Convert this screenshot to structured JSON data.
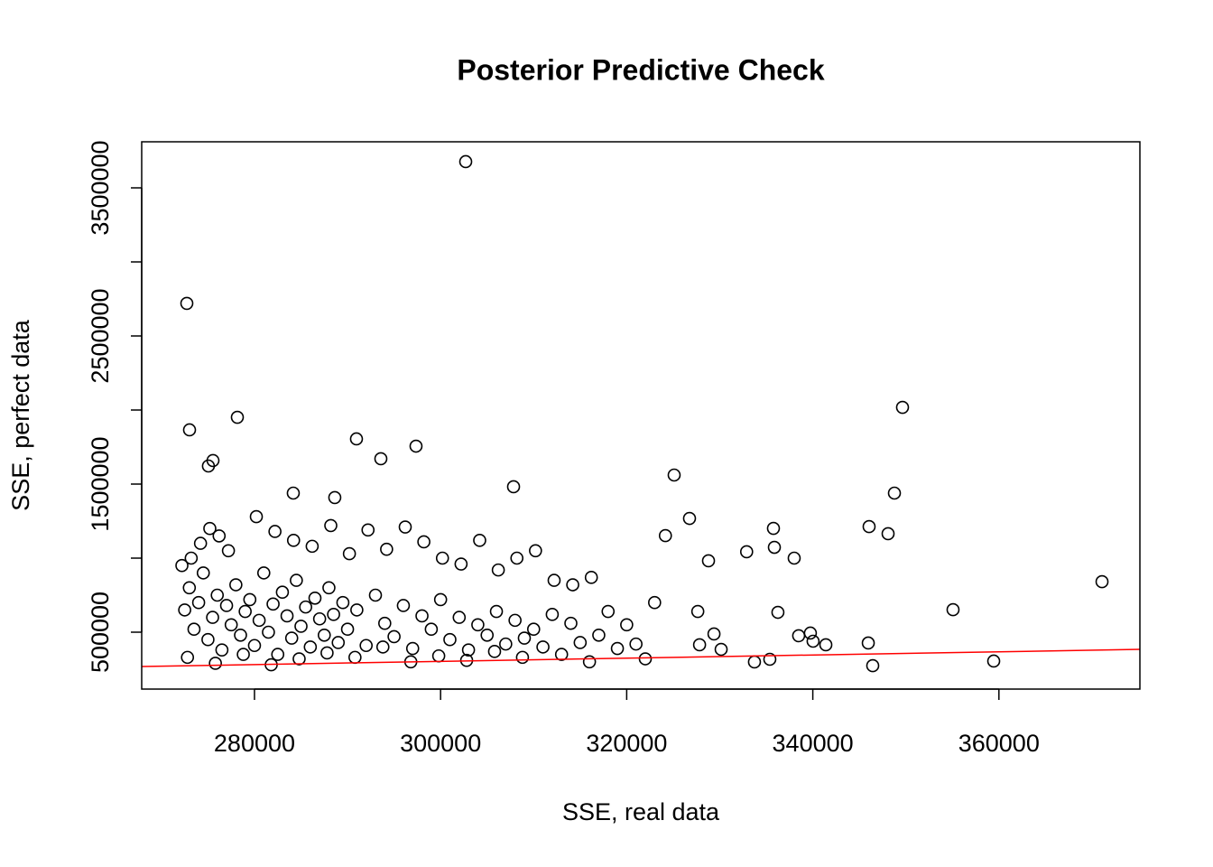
{
  "chart_data": {
    "type": "scatter",
    "title": "Posterior Predictive Check",
    "x_label": "SSE, real data",
    "y_label": "SSE, perfect data",
    "xlim": [
      267880,
      375150
    ],
    "ylim": [
      115850,
      3811000
    ],
    "xticks": [
      280000,
      300000,
      320000,
      340000,
      360000
    ],
    "yticks": [
      500000,
      1500000,
      2500000,
      3500000
    ],
    "yminor_ticks": [
      1000000,
      2000000,
      3000000
    ],
    "point_color": "#000000",
    "reference_line": {
      "color": "#ff0000",
      "x": [
        267880,
        375150
      ],
      "y": [
        268300,
        384000
      ]
    },
    "x": [
      302700,
      272730,
      349640,
      273020,
      278160,
      290960,
      297360,
      293580,
      275050,
      275540,
      325100,
      307840,
      348770,
      284170,
      288630,
      326750,
      335770,
      346050,
      348090,
      324160,
      332890,
      335870,
      338000,
      371080,
      328790,
      355070,
      336250,
      338480,
      339740,
      340030,
      341400,
      345960,
      346440,
      359440,
      335380,
      333730,
      330150,
      329380,
      327830,
      327640,
      272500,
      273000,
      273500,
      274000,
      274500,
      275000,
      275500,
      276000,
      276500,
      277000,
      277500,
      278000,
      278500,
      279000,
      279500,
      280000,
      280500,
      281000,
      281500,
      282000,
      282500,
      283000,
      283500,
      284000,
      284500,
      285000,
      285500,
      286000,
      286500,
      287000,
      287500,
      288000,
      288500,
      289000,
      289500,
      290000,
      291000,
      292000,
      293000,
      294000,
      295000,
      296000,
      297000,
      298000,
      299000,
      300000,
      301000,
      302000,
      303000,
      304000,
      305000,
      306000,
      307000,
      308000,
      309000,
      310000,
      311000,
      312000,
      313000,
      314000,
      315000,
      316000,
      317000,
      318000,
      319000,
      320000,
      321000,
      322000,
      323000,
      272200,
      273200,
      274200,
      275200,
      276200,
      277200,
      280200,
      282200,
      284200,
      286200,
      288200,
      290200,
      292200,
      294200,
      296200,
      298200,
      300200,
      302200,
      304200,
      306200,
      308200,
      310200,
      312200,
      314200,
      316200,
      272800,
      275800,
      278800,
      281800,
      284800,
      287800,
      290800,
      293800,
      296800,
      299800,
      302800,
      305800,
      308800
    ],
    "y": [
      3677000,
      2720000,
      2018000,
      1866000,
      1951000,
      1805000,
      1756000,
      1671000,
      1622000,
      1659000,
      1561000,
      1482000,
      1439000,
      1439000,
      1409000,
      1268000,
      1201000,
      1213000,
      1165000,
      1152000,
      1043000,
      1073000,
      1000000,
      841000,
      982000,
      652000,
      634000,
      476000,
      494000,
      439000,
      415000,
      427000,
      274000,
      305000,
      317000,
      299000,
      384000,
      488000,
      415000,
      640000,
      650000,
      800000,
      520000,
      700000,
      900000,
      450000,
      600000,
      750000,
      380000,
      680000,
      550000,
      820000,
      480000,
      640000,
      720000,
      410000,
      580000,
      900000,
      500000,
      690000,
      350000,
      770000,
      610000,
      460000,
      850000,
      540000,
      670000,
      400000,
      730000,
      590000,
      480000,
      800000,
      620000,
      430000,
      700000,
      520000,
      650000,
      410000,
      750000,
      560000,
      470000,
      680000,
      390000,
      610000,
      520000,
      720000,
      450000,
      600000,
      380000,
      550000,
      480000,
      640000,
      420000,
      580000,
      460000,
      520000,
      400000,
      620000,
      350000,
      560000,
      430000,
      300000,
      480000,
      640000,
      390000,
      550000,
      420000,
      320000,
      700000,
      950000,
      1000000,
      1100000,
      1200000,
      1150000,
      1050000,
      1280000,
      1180000,
      1120000,
      1080000,
      1220000,
      1030000,
      1190000,
      1060000,
      1210000,
      1110000,
      1000000,
      960000,
      1120000,
      920000,
      1000000,
      1050000,
      850000,
      820000,
      870000,
      330000,
      290000,
      350000,
      280000,
      320000,
      360000,
      330000,
      400000,
      300000,
      340000,
      310000,
      370000,
      330000
    ]
  }
}
